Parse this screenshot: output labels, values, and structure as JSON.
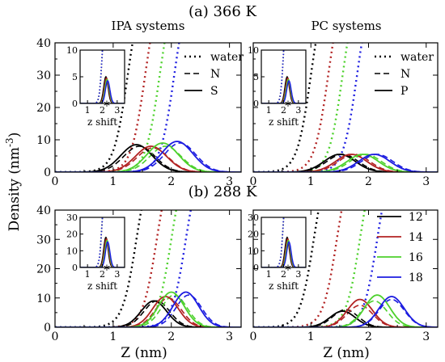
{
  "figure": {
    "row_titles": [
      "(a) 366 K",
      "(b) 288 K"
    ],
    "column_titles": [
      "IPA systems",
      "PC systems"
    ],
    "y_axis_label": "Density (nm",
    "y_axis_label_exp": "-3",
    "y_axis_label_close": ")",
    "x_axis_label": "Z (nm)",
    "inset_x_label": "z shift",
    "style_legends": [
      {
        "entries": [
          "water",
          "N",
          "S"
        ]
      },
      {
        "entries": [
          "water",
          "N",
          "P"
        ]
      }
    ],
    "color_legend": {
      "entries": [
        {
          "label": "12",
          "color": "#000000"
        },
        {
          "label": "14",
          "color": "#b22222"
        },
        {
          "label": "16",
          "color": "#4dd12c"
        },
        {
          "label": "18",
          "color": "#1c1ce0"
        }
      ]
    }
  },
  "chart_data": [
    {
      "type": "line",
      "panel": "(a) 366 K IPA systems",
      "xlabel": "",
      "ylabel": "",
      "xlim": [
        0,
        3.2
      ],
      "ylim": [
        0,
        40
      ],
      "xticks": [
        0,
        1,
        2,
        3
      ],
      "yticks": [
        0,
        10,
        20,
        30,
        40
      ],
      "series": [
        {
          "name": "water",
          "lengths": [
            12,
            14,
            16,
            18
          ],
          "centers": [
            1.25,
            1.55,
            1.8,
            2.05
          ],
          "values": [
            38,
            40,
            40,
            40
          ]
        },
        {
          "name": "N",
          "lengths": [
            12,
            14,
            16,
            18
          ],
          "centers": [
            1.45,
            1.68,
            1.9,
            2.15
          ],
          "values": [
            8,
            7.5,
            8,
            9
          ]
        },
        {
          "name": "S",
          "lengths": [
            12,
            14,
            16,
            18
          ],
          "centers": [
            1.4,
            1.65,
            1.85,
            2.1
          ],
          "values": [
            8.5,
            8,
            9,
            9.5
          ]
        }
      ],
      "inset": {
        "xlim": [
          0.5,
          3.5
        ],
        "ylim": [
          0,
          10
        ],
        "xticks": [
          1,
          2,
          3
        ],
        "yticks": [
          0,
          5,
          10
        ]
      }
    },
    {
      "type": "line",
      "panel": "(a) 366 K PC systems",
      "xlabel": "",
      "ylabel": "",
      "xlim": [
        0,
        3.2
      ],
      "ylim": [
        0,
        40
      ],
      "xticks": [
        0,
        1,
        2,
        3
      ],
      "yticks": [
        0,
        10,
        20,
        30,
        40
      ],
      "series": [
        {
          "name": "water",
          "lengths": [
            12,
            14,
            16,
            18
          ],
          "centers": [
            1.0,
            1.3,
            1.55,
            1.8
          ],
          "values": [
            40,
            40,
            40,
            40
          ]
        },
        {
          "name": "N",
          "lengths": [
            12,
            14,
            16,
            18
          ],
          "centers": [
            1.55,
            1.75,
            1.95,
            2.15
          ],
          "values": [
            5.5,
            5.5,
            5.5,
            5.5
          ]
        },
        {
          "name": "P",
          "lengths": [
            12,
            14,
            16,
            18
          ],
          "centers": [
            1.5,
            1.7,
            1.9,
            2.1
          ],
          "values": [
            5.5,
            5.5,
            5.5,
            5.5
          ]
        }
      ],
      "inset": {
        "xlim": [
          0.5,
          3.5
        ],
        "ylim": [
          0,
          10
        ],
        "xticks": [
          1,
          2,
          3
        ],
        "yticks": [
          0,
          5,
          10
        ]
      }
    },
    {
      "type": "line",
      "panel": "(b) 288 K IPA systems",
      "xlabel": "Z (nm)",
      "ylabel": "",
      "xlim": [
        0,
        3.2
      ],
      "ylim": [
        0,
        40
      ],
      "xticks": [
        0,
        1,
        2,
        3
      ],
      "yticks": [
        0,
        10,
        20,
        30,
        40
      ],
      "series": [
        {
          "name": "water",
          "lengths": [
            12,
            14,
            16,
            18
          ],
          "centers": [
            1.4,
            1.75,
            2.0,
            2.25
          ],
          "values": [
            40,
            40,
            40,
            40
          ]
        },
        {
          "name": "N",
          "lengths": [
            12,
            14,
            16,
            18
          ],
          "centers": [
            1.75,
            1.95,
            2.05,
            2.3
          ],
          "values": [
            9,
            10,
            11,
            11
          ]
        },
        {
          "name": "S",
          "lengths": [
            12,
            14,
            16,
            18
          ],
          "centers": [
            1.7,
            1.9,
            2.0,
            2.25
          ],
          "values": [
            9,
            10.5,
            12,
            12
          ]
        }
      ],
      "inset": {
        "xlim": [
          0.5,
          3.5
        ],
        "ylim": [
          0,
          30
        ],
        "xticks": [
          1,
          2,
          3
        ],
        "yticks": [
          0,
          10,
          20,
          30
        ]
      }
    },
    {
      "type": "line",
      "panel": "(b) 288 K PC systems",
      "xlabel": "Z (nm)",
      "ylabel": "",
      "xlim": [
        0,
        3.2
      ],
      "ylim": [
        0,
        40
      ],
      "xticks": [
        0,
        1,
        2,
        3
      ],
      "yticks": [
        0,
        10,
        20,
        30,
        40
      ],
      "series": [
        {
          "name": "water",
          "lengths": [
            12,
            14,
            16,
            18
          ],
          "centers": [
            1.05,
            1.45,
            1.85,
            2.15
          ],
          "values": [
            40,
            40,
            40,
            40
          ]
        },
        {
          "name": "N",
          "lengths": [
            12,
            14,
            16,
            18
          ],
          "centers": [
            1.6,
            1.85,
            2.1,
            2.4
          ],
          "values": [
            6,
            7.5,
            9,
            9.5
          ]
        },
        {
          "name": "P",
          "lengths": [
            12,
            14,
            16,
            18
          ],
          "centers": [
            1.55,
            1.85,
            2.15,
            2.4
          ],
          "values": [
            5.5,
            9.5,
            11,
            10.5
          ]
        }
      ],
      "inset": {
        "xlim": [
          0.5,
          3.5
        ],
        "ylim": [
          0,
          30
        ],
        "xticks": [
          1,
          2,
          3
        ],
        "yticks": [
          0,
          10,
          20,
          30
        ]
      }
    }
  ]
}
